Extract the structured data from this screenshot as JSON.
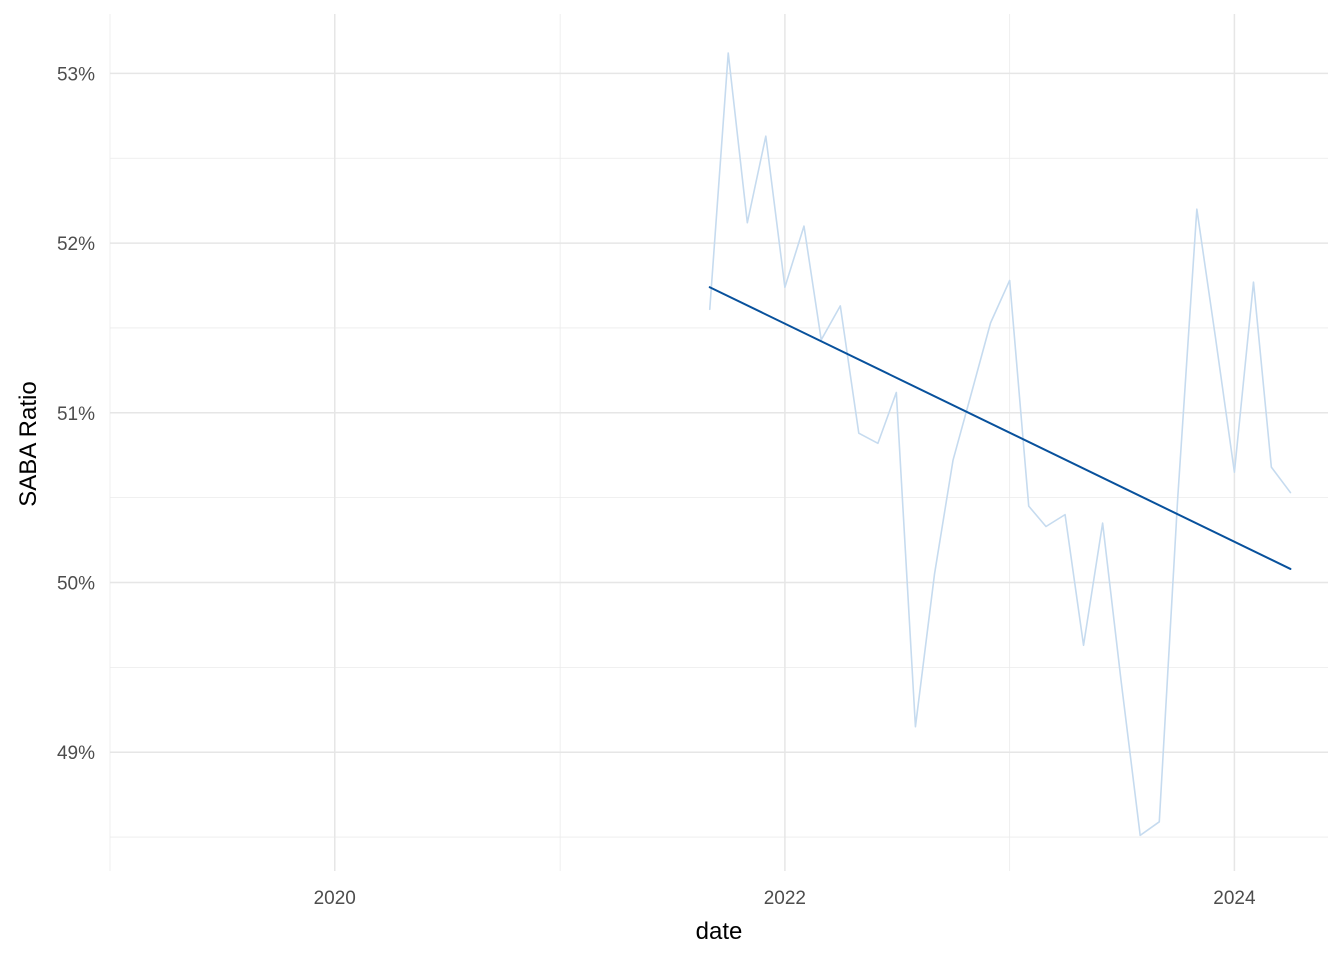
{
  "chart_data": {
    "type": "line",
    "xlabel": "date",
    "ylabel": "SABA Ratio",
    "x_axis": {
      "type": "date",
      "range": [
        "2019-01-01",
        "2024-06-01"
      ],
      "major_ticks": [
        "2020-01-01",
        "2022-01-01",
        "2024-01-01"
      ],
      "major_tick_labels": [
        "2020",
        "2022",
        "2024"
      ],
      "minor_ticks": [
        "2019-01-01",
        "2021-01-01",
        "2023-01-01"
      ]
    },
    "y_axis": {
      "range": [
        0.483,
        0.5335
      ],
      "major_ticks": [
        0.49,
        0.5,
        0.51,
        0.52,
        0.53
      ],
      "major_tick_labels": [
        "49%",
        "50%",
        "51%",
        "52%",
        "53%"
      ],
      "minor_ticks": [
        0.485,
        0.495,
        0.505,
        0.515,
        0.525
      ]
    },
    "grid": true,
    "series": [
      {
        "color": "#c6dbef",
        "x": [
          "2021-09-01",
          "2021-10-01",
          "2021-11-01",
          "2021-12-01",
          "2022-01-01",
          "2022-02-01",
          "2022-03-01",
          "2022-04-01",
          "2022-05-01",
          "2022-06-01",
          "2022-07-01",
          "2022-08-01",
          "2022-09-01",
          "2022-10-01",
          "2022-11-01",
          "2022-12-01",
          "2023-01-01",
          "2023-02-01",
          "2023-03-01",
          "2023-04-01",
          "2023-05-01",
          "2023-06-01",
          "2023-07-01",
          "2023-08-01",
          "2023-09-01",
          "2023-10-01",
          "2023-11-01",
          "2023-12-01",
          "2024-01-01",
          "2024-02-01",
          "2024-03-01",
          "2024-04-01"
        ],
        "y": [
          0.5161,
          0.5312,
          0.5212,
          0.5263,
          0.5174,
          0.521,
          0.5143,
          0.5163,
          0.5088,
          0.5082,
          0.5112,
          0.4915,
          0.5005,
          0.5072,
          0.5113,
          0.5153,
          0.5178,
          0.5045,
          0.5033,
          0.504,
          0.4963,
          0.5035,
          0.4942,
          0.4851,
          0.4859,
          0.505,
          0.522,
          0.5145,
          0.5065,
          0.5177,
          0.5068,
          0.5053
        ]
      },
      {
        "color": "#08519c",
        "x": [
          "2021-09-01",
          "2024-04-01"
        ],
        "y": [
          0.5174,
          0.5008
        ]
      }
    ]
  }
}
